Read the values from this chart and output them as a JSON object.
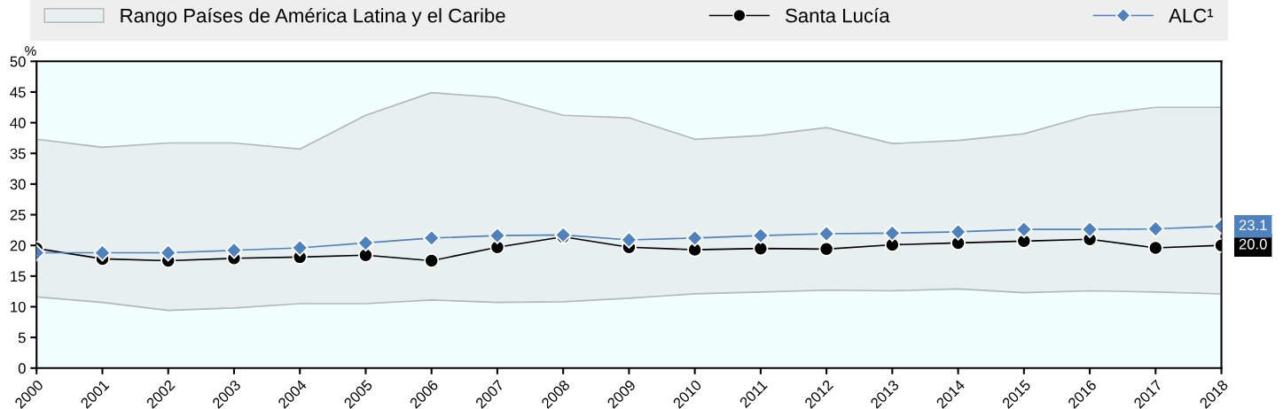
{
  "chart_data": {
    "type": "line",
    "ylabel": "%",
    "categories": [
      "2000",
      "2001",
      "2002",
      "2003",
      "2004",
      "2005",
      "2006",
      "2007",
      "2008",
      "2009",
      "2010",
      "2011",
      "2012",
      "2013",
      "2014",
      "2015",
      "2016",
      "2017",
      "2018"
    ],
    "series": [
      {
        "color": "#b3b8b8",
        "marker": "none",
        "values": [
          11.6,
          10.7,
          9.4,
          9.8,
          10.5,
          10.5,
          11.1,
          10.7,
          10.8,
          11.4,
          12.1,
          12.4,
          12.7,
          12.6,
          12.9,
          12.3,
          12.6,
          12.4,
          12.1
        ]
      },
      {
        "name": "Rango Países de América Latina y el Caribe",
        "type": "area",
        "color": "#e8efef",
        "values": [
          37.3,
          36.0,
          36.7,
          36.7,
          35.7,
          41.2,
          44.9,
          44.1,
          41.2,
          40.8,
          37.3,
          37.9,
          39.2,
          36.6,
          37.1,
          38.2,
          41.2,
          42.5,
          42.5
        ]
      },
      {
        "name": "Santa Lucía",
        "type": "line",
        "color": "#000000",
        "marker": "circle",
        "values": [
          19.5,
          17.8,
          17.5,
          17.9,
          18.1,
          18.4,
          17.5,
          19.7,
          21.4,
          19.7,
          19.3,
          19.5,
          19.4,
          20.1,
          20.4,
          20.7,
          21.0,
          19.6,
          20.0
        ],
        "value_labels": [
          null,
          null,
          null,
          null,
          null,
          null,
          null,
          null,
          null,
          null,
          null,
          null,
          null,
          null,
          null,
          null,
          null,
          null,
          "20.0"
        ]
      },
      {
        "name": "ALC¹",
        "type": "line",
        "color": "#4f81bd",
        "marker": "diamond",
        "values": [
          18.8,
          18.8,
          18.8,
          19.2,
          19.6,
          20.4,
          21.2,
          21.6,
          21.7,
          20.9,
          21.2,
          21.6,
          21.9,
          22.0,
          22.2,
          22.6,
          22.6,
          22.7,
          23.1
        ],
        "value_labels": [
          null,
          null,
          null,
          null,
          null,
          null,
          null,
          null,
          null,
          null,
          null,
          null,
          null,
          null,
          null,
          null,
          null,
          null,
          "23.1"
        ]
      }
    ],
    "ylim": [
      0,
      50
    ],
    "yticks": [
      0,
      5,
      10,
      15,
      20,
      25,
      30,
      35,
      40,
      45,
      50
    ],
    "grid": false,
    "legend": "top",
    "line_style": "solid"
  }
}
